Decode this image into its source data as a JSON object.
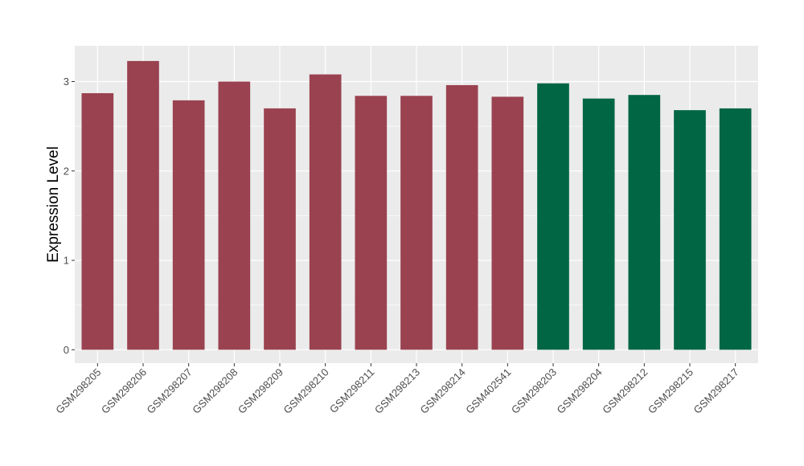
{
  "chart_data": {
    "type": "bar",
    "title": "",
    "xlabel": "",
    "ylabel": "Expression Level",
    "ylim": [
      -0.15,
      3.4
    ],
    "yticks": [
      0,
      1,
      2,
      3
    ],
    "grid": true,
    "categories": [
      "GSM298205",
      "GSM298206",
      "GSM298207",
      "GSM298208",
      "GSM298209",
      "GSM298210",
      "GSM298211",
      "GSM298213",
      "GSM298214",
      "GSM402541",
      "GSM298203",
      "GSM298204",
      "GSM298212",
      "GSM298215",
      "GSM298217"
    ],
    "values": [
      2.87,
      3.23,
      2.79,
      3.0,
      2.7,
      3.08,
      2.84,
      2.84,
      2.96,
      2.83,
      2.98,
      2.81,
      2.85,
      2.68,
      2.7
    ],
    "groups": [
      0,
      0,
      0,
      0,
      0,
      0,
      0,
      0,
      0,
      0,
      1,
      1,
      1,
      1,
      1
    ],
    "group_colors": [
      "#9a4250",
      "#006644"
    ],
    "panel_background": "#ebebeb",
    "gridline_color": "#ffffff"
  }
}
